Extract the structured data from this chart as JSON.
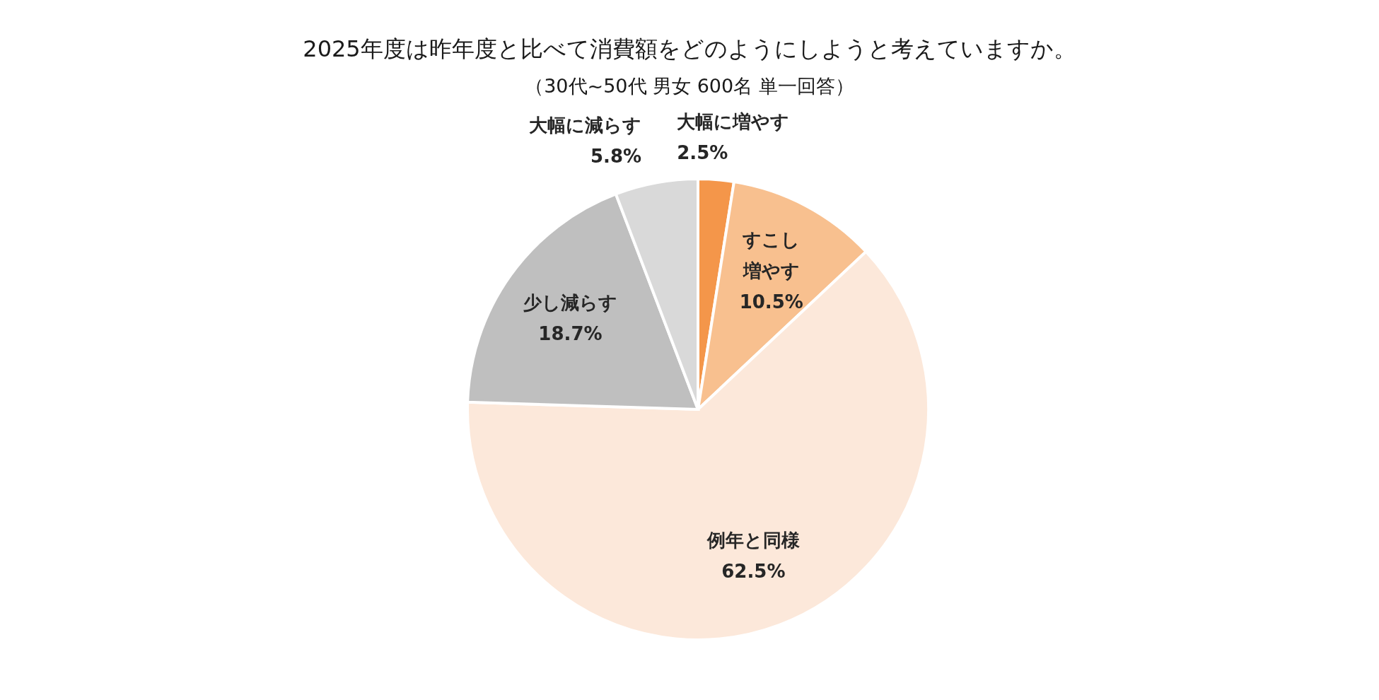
{
  "chart_data": {
    "type": "pie",
    "title": "2025年度は昨年度と比べて消費額をどのようにしようと考えていますか。",
    "subtitle": "（30代~50代 男女 600名 単一回答）",
    "categories": [
      "大幅に増やす",
      "すこし増やす",
      "例年と同様",
      "少し減らす",
      "大幅に減らす"
    ],
    "values": [
      2.5,
      10.5,
      62.5,
      18.7,
      5.8
    ],
    "value_labels": [
      "2.5%",
      "10.5%",
      "62.5%",
      "18.7%",
      "5.8%"
    ],
    "colors": [
      "#f4964a",
      "#f8c08f",
      "#fce8da",
      "#bfbfbf",
      "#d9d9d9"
    ]
  }
}
